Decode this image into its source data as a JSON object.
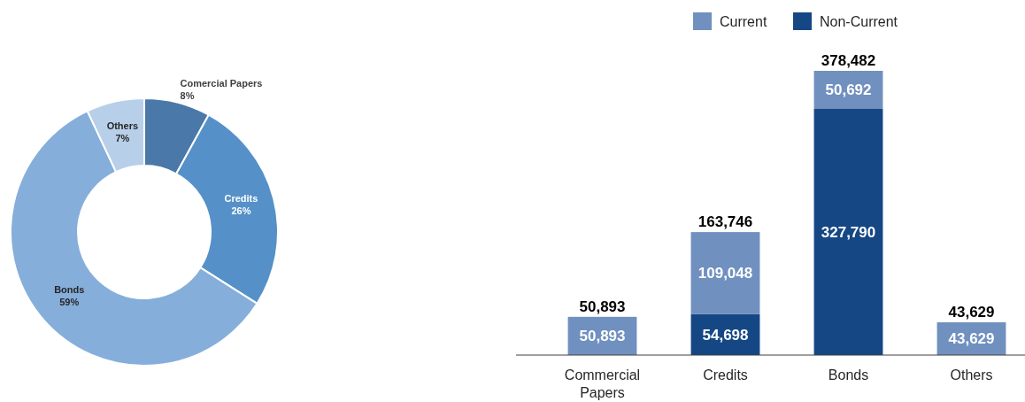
{
  "chart_data": [
    {
      "type": "donut",
      "categories": [
        "Comercial Papers",
        "Credits",
        "Bonds",
        "Others"
      ],
      "values": [
        8,
        26,
        59,
        7
      ],
      "colors": [
        "#4a78a8",
        "#5591c8",
        "#86aedb",
        "#b8cfe9"
      ],
      "value_labels": [
        "8%",
        "26%",
        "59%",
        "7%"
      ]
    },
    {
      "type": "bar",
      "stacked": true,
      "categories": [
        "Commercial Papers",
        "Credits",
        "Bonds",
        "Others"
      ],
      "series": [
        {
          "name": "Non-Current",
          "color": "#154785",
          "values": [
            null,
            54698,
            327790,
            null
          ],
          "value_labels": [
            null,
            "54,698",
            "327,790",
            null
          ]
        },
        {
          "name": "Current",
          "color": "#7090bf",
          "values": [
            50893,
            109048,
            50692,
            43629
          ],
          "value_labels": [
            "50,893",
            "109,048",
            "50,692",
            "43,629"
          ]
        }
      ],
      "totals": [
        "50,893",
        "163,746",
        "378,482",
        "43,629"
      ],
      "legend": "top"
    }
  ]
}
